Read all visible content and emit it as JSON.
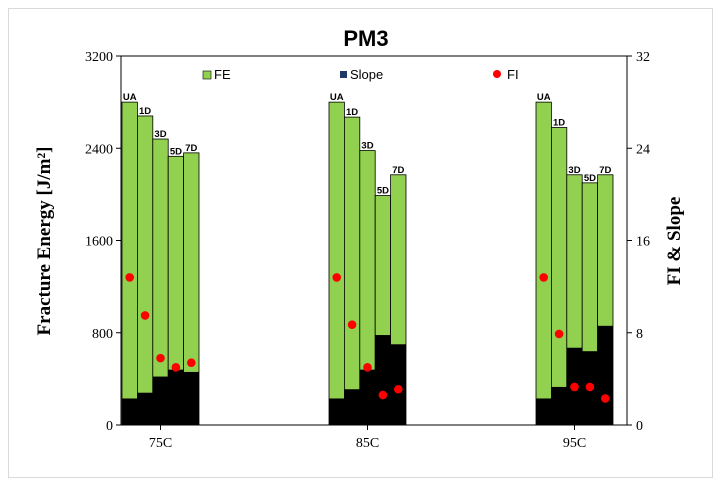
{
  "chart_data": {
    "type": "bar",
    "title": "PM3",
    "ylabel": "Fracture Energy [J/m²]",
    "y2label": "FI & Slope",
    "ylim": [
      0,
      3200
    ],
    "y2lim": [
      0,
      32
    ],
    "yticks": [
      0,
      800,
      1600,
      2400,
      3200
    ],
    "y2ticks": [
      0,
      8,
      16,
      24,
      32
    ],
    "categories": [
      "75C",
      "85C",
      "95C"
    ],
    "bar_labels": [
      "UA",
      "1D",
      "3D",
      "5D",
      "7D"
    ],
    "legend": [
      "FE",
      "Slope",
      "FI"
    ],
    "legend_position": "top",
    "colors": {
      "FE": "#92d050",
      "Slope": "#000000",
      "FI": "#ff0000"
    },
    "series": [
      {
        "name": "FE",
        "axis": "left",
        "values": [
          [
            2800,
            2680,
            2480,
            2330,
            2360
          ],
          [
            2800,
            2670,
            2380,
            1990,
            2170
          ],
          [
            2800,
            2580,
            2170,
            2100,
            2170
          ]
        ]
      },
      {
        "name": "Slope",
        "axis": "right",
        "values": [
          [
            2.3,
            2.8,
            4.2,
            4.8,
            4.6
          ],
          [
            2.3,
            3.1,
            4.8,
            7.8,
            7.0
          ],
          [
            2.3,
            3.3,
            6.7,
            6.4,
            8.6
          ]
        ]
      },
      {
        "name": "FI",
        "axis": "right",
        "values": [
          [
            12.8,
            9.5,
            5.8,
            5.0,
            5.4
          ],
          [
            12.8,
            8.7,
            5.0,
            2.6,
            3.1
          ],
          [
            12.8,
            7.9,
            3.3,
            3.3,
            2.3
          ]
        ]
      }
    ]
  }
}
